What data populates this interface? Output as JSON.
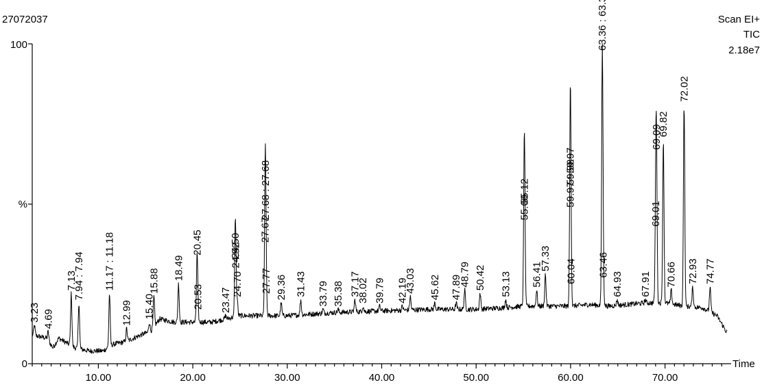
{
  "header": {
    "sample_id": "27072037",
    "scan_mode": "Scan EI+",
    "trace_type": "TIC",
    "intensity": "2.18e7"
  },
  "chart_data": {
    "type": "line",
    "title": "",
    "xlabel": "Time",
    "ylabel": "%",
    "xlim": [
      3,
      77
    ],
    "ylim": [
      0,
      100
    ],
    "x_ticks": [
      "10.00",
      "20.00",
      "30.00",
      "40.00",
      "50.00",
      "60.00",
      "70.00"
    ],
    "x_tick_values": [
      10,
      20,
      30,
      40,
      50,
      60,
      70
    ],
    "y_ticks": [
      "0",
      "%",
      "100"
    ],
    "y_tick_values": [
      0,
      50,
      100
    ],
    "baseline": [
      [
        3.0,
        9
      ],
      [
        4.5,
        8
      ],
      [
        5.2,
        5
      ],
      [
        5.8,
        8
      ],
      [
        7.5,
        5
      ],
      [
        9.0,
        4
      ],
      [
        10.5,
        4
      ],
      [
        11.5,
        6
      ],
      [
        13.0,
        7
      ],
      [
        14.5,
        9
      ],
      [
        15.5,
        10
      ],
      [
        16.5,
        14
      ],
      [
        18.0,
        13
      ],
      [
        20.0,
        13
      ],
      [
        22.0,
        13
      ],
      [
        23.5,
        14
      ],
      [
        25.0,
        15
      ],
      [
        27.0,
        15
      ],
      [
        30.0,
        15
      ],
      [
        35.0,
        16
      ],
      [
        40.0,
        16.5
      ],
      [
        45.0,
        17
      ],
      [
        50.0,
        17
      ],
      [
        53.0,
        17.5
      ],
      [
        55.0,
        18
      ],
      [
        58.0,
        18
      ],
      [
        60.0,
        18
      ],
      [
        62.0,
        18.5
      ],
      [
        64.0,
        18
      ],
      [
        66.0,
        18.5
      ],
      [
        68.0,
        19
      ],
      [
        70.0,
        19
      ],
      [
        72.0,
        18
      ],
      [
        74.0,
        17.5
      ],
      [
        75.5,
        15
      ],
      [
        76.5,
        10
      ]
    ],
    "peaks": [
      {
        "label": "3.23",
        "rt": 3.23,
        "height": 12
      },
      {
        "label": "4.69",
        "rt": 4.69,
        "height": 10
      },
      {
        "label": "7.13",
        "rt": 7.13,
        "height": 22
      },
      {
        "label": "7.94 : 7.94",
        "rt": 7.94,
        "height": 19
      },
      {
        "label": "11.17 : 11.18",
        "rt": 11.18,
        "height": 22
      },
      {
        "label": "12.99",
        "rt": 12.99,
        "height": 11
      },
      {
        "label": "15.40",
        "rt": 15.4,
        "height": 13
      },
      {
        "label": "15.88",
        "rt": 15.88,
        "height": 21
      },
      {
        "label": "18.49",
        "rt": 18.49,
        "height": 25
      },
      {
        "label": "20.45",
        "rt": 20.45,
        "height": 33
      },
      {
        "label": "20.53",
        "rt": 20.53,
        "height": 16
      },
      {
        "label": "23.47",
        "rt": 23.47,
        "height": 15
      },
      {
        "label": "24.50",
        "rt": 24.5,
        "height": 32
      },
      {
        "label": "24.70",
        "rt": 24.7,
        "height": 20
      },
      {
        "label": "24.52",
        "rt": 24.52,
        "height": 29
      },
      {
        "label": "27.67",
        "rt": 27.67,
        "height": 37
      },
      {
        "label": "27.68 : 27.68",
        "rt": 27.68,
        "height": 44
      },
      {
        "label": "27.77",
        "rt": 27.77,
        "height": 21
      },
      {
        "label": "29.36",
        "rt": 29.36,
        "height": 19
      },
      {
        "label": "31.43",
        "rt": 31.43,
        "height": 20
      },
      {
        "label": "33.79",
        "rt": 33.79,
        "height": 17
      },
      {
        "label": "35.38",
        "rt": 35.38,
        "height": 17
      },
      {
        "label": "37.17",
        "rt": 37.17,
        "height": 20
      },
      {
        "label": "38.02",
        "rt": 38.02,
        "height": 18
      },
      {
        "label": "39.79",
        "rt": 39.79,
        "height": 18
      },
      {
        "label": "42.19",
        "rt": 42.19,
        "height": 18
      },
      {
        "label": "43.03",
        "rt": 43.03,
        "height": 21
      },
      {
        "label": "45.62",
        "rt": 45.62,
        "height": 19
      },
      {
        "label": "47.89",
        "rt": 47.89,
        "height": 19
      },
      {
        "label": "48.79",
        "rt": 48.79,
        "height": 23
      },
      {
        "label": "50.42",
        "rt": 50.42,
        "height": 22
      },
      {
        "label": "53.13",
        "rt": 53.13,
        "height": 20
      },
      {
        "label": "55.09",
        "rt": 55.09,
        "height": 44
      },
      {
        "label": "55.12",
        "rt": 55.12,
        "height": 49
      },
      {
        "label": "56.41",
        "rt": 56.41,
        "height": 23
      },
      {
        "label": "57.33",
        "rt": 57.33,
        "height": 28
      },
      {
        "label": "59.97 : 59.97",
        "rt": 59.97,
        "height": 48
      },
      {
        "label": "59.98",
        "rt": 59.98,
        "height": 55
      },
      {
        "label": "60.04",
        "rt": 60.04,
        "height": 24
      },
      {
        "label": "63.36 : 63.36",
        "rt": 63.36,
        "height": 97
      },
      {
        "label": "63.46",
        "rt": 63.46,
        "height": 26
      },
      {
        "label": "64.93",
        "rt": 64.93,
        "height": 20
      },
      {
        "label": "67.91",
        "rt": 67.91,
        "height": 20
      },
      {
        "label": "69.01",
        "rt": 69.01,
        "height": 42
      },
      {
        "label": "69.09",
        "rt": 69.09,
        "height": 66
      },
      {
        "label": "69.82",
        "rt": 69.82,
        "height": 70
      },
      {
        "label": "70.66",
        "rt": 70.66,
        "height": 23
      },
      {
        "label": "72.02",
        "rt": 72.02,
        "height": 81
      },
      {
        "label": "72.93",
        "rt": 72.93,
        "height": 24
      },
      {
        "label": "74.77",
        "rt": 74.77,
        "height": 24
      }
    ],
    "grid": false,
    "legend": "none"
  }
}
